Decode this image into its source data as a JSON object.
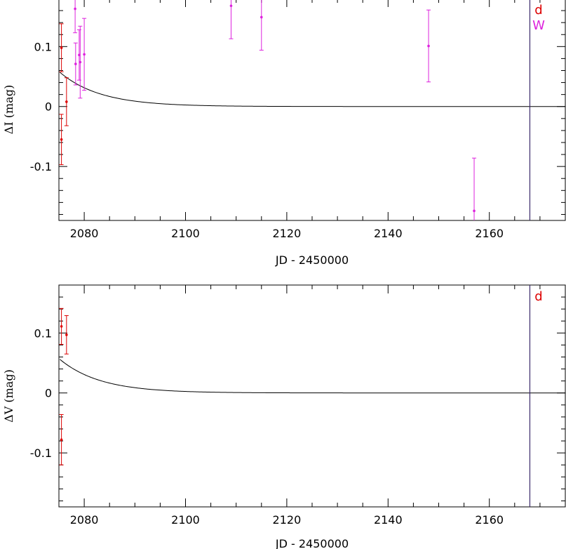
{
  "chart_data": [
    {
      "type": "scatter",
      "panel": "I-band",
      "xlabel": "JD - 2450000",
      "ylabel": "ΔI (mag)",
      "xlim": [
        2075,
        2175
      ],
      "ylim": [
        -0.19,
        0.18
      ],
      "xticks": [
        2080,
        2100,
        2120,
        2140,
        2160
      ],
      "yticks": [
        -0.1,
        0,
        0.1
      ],
      "ytick_labels": [
        "-0.1",
        "0",
        "0.1"
      ],
      "grid": false,
      "legend": {
        "placement": "top-right",
        "entries": [
          {
            "label": "d",
            "color": "#dd0000"
          },
          {
            "label": "W",
            "color": "#dd22dd"
          }
        ]
      },
      "vline_x": 2168,
      "vline_color": "#3a2a6a",
      "model_curve": {
        "x_start": 2075.2,
        "x_end": 2175,
        "y_at_start": 0.057,
        "decay_scale_days": 8,
        "color": "#000000"
      },
      "series": [
        {
          "name": "d",
          "color": "#dd0000",
          "points": [
            {
              "x": 2075.5,
              "y": 0.098,
              "err": 0.04
            },
            {
              "x": 2075.5,
              "y": -0.055,
              "err": 0.042
            },
            {
              "x": 2076.5,
              "y": 0.008,
              "err": 0.04
            }
          ]
        },
        {
          "name": "W",
          "color": "#dd22dd",
          "points": [
            {
              "x": 2078.2,
              "y": 0.163,
              "err": 0.04
            },
            {
              "x": 2078.3,
              "y": 0.071,
              "err": 0.035
            },
            {
              "x": 2079.0,
              "y": 0.086,
              "err": 0.042
            },
            {
              "x": 2079.2,
              "y": 0.074,
              "err": 0.06
            },
            {
              "x": 2080.0,
              "y": 0.087,
              "err": 0.06
            },
            {
              "x": 2109.0,
              "y": 0.168,
              "err": 0.055
            },
            {
              "x": 2115.0,
              "y": 0.149,
              "err": 0.055
            },
            {
              "x": 2148.0,
              "y": 0.101,
              "err": 0.06
            },
            {
              "x": 2157.0,
              "y": -0.174,
              "err": 0.088
            }
          ]
        }
      ]
    },
    {
      "type": "scatter",
      "panel": "V-band",
      "xlabel": "JD - 2450000",
      "ylabel": "ΔV (mag)",
      "xlim": [
        2075,
        2175
      ],
      "ylim": [
        -0.19,
        0.18
      ],
      "xticks": [
        2080,
        2100,
        2120,
        2140,
        2160
      ],
      "yticks": [
        -0.1,
        0,
        0.1
      ],
      "ytick_labels": [
        "-0.1",
        "0",
        "0.1"
      ],
      "grid": false,
      "legend": {
        "placement": "top-right",
        "entries": [
          {
            "label": "d",
            "color": "#dd0000"
          }
        ]
      },
      "vline_x": 2168,
      "vline_color": "#3a2a6a",
      "model_curve": {
        "x_start": 2075.2,
        "x_end": 2175,
        "y_at_start": 0.056,
        "decay_scale_days": 8,
        "color": "#000000"
      },
      "series": [
        {
          "name": "d",
          "color": "#dd0000",
          "points": [
            {
              "x": 2075.5,
              "y": 0.111,
              "err": 0.03
            },
            {
              "x": 2076.5,
              "y": 0.097,
              "err": 0.032
            },
            {
              "x": 2075.5,
              "y": -0.078,
              "err": 0.042
            }
          ]
        }
      ]
    }
  ]
}
